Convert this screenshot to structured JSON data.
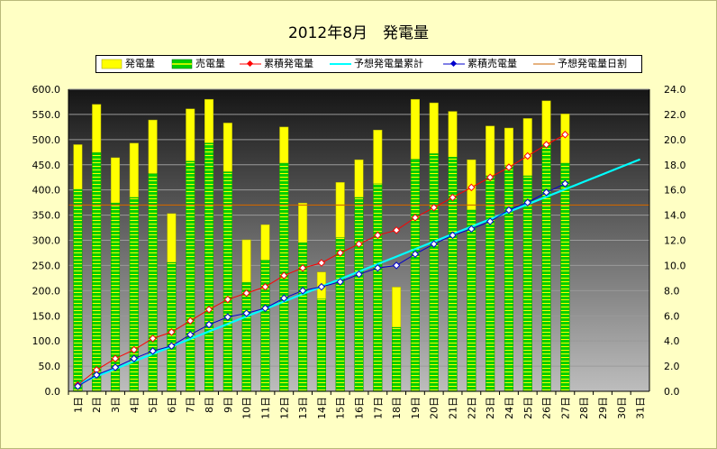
{
  "chart_data": {
    "type": "bar",
    "title": "2012年8月　発電量",
    "categories": [
      "1日",
      "2日",
      "3日",
      "4日",
      "5日",
      "6日",
      "7日",
      "8日",
      "9日",
      "10日",
      "11日",
      "12日",
      "13日",
      "14日",
      "15日",
      "16日",
      "17日",
      "18日",
      "19日",
      "20日",
      "21日",
      "22日",
      "23日",
      "24日",
      "25日",
      "26日",
      "27日",
      "28日",
      "29日",
      "30日",
      "31日"
    ],
    "ylim_left": [
      0,
      600
    ],
    "yticks_left": [
      "0.0",
      "50.0",
      "100.0",
      "150.0",
      "200.0",
      "250.0",
      "300.0",
      "350.0",
      "400.0",
      "450.0",
      "500.0",
      "550.0",
      "600.0"
    ],
    "ylim_right": [
      0,
      24
    ],
    "yticks_right": [
      "0.0",
      "2.0",
      "4.0",
      "6.0",
      "8.0",
      "10.0",
      "12.0",
      "14.0",
      "16.0",
      "18.0",
      "20.0",
      "22.0",
      "24.0"
    ],
    "grid": true,
    "legend_position": "top",
    "series": [
      {
        "name": "発電量",
        "type": "bar",
        "axis": "left",
        "color": "#ffff00",
        "values": [
          490,
          570,
          464,
          493,
          539,
          353,
          561,
          580,
          533,
          301,
          331,
          525,
          374,
          237,
          415,
          460,
          519,
          207,
          580,
          573,
          556,
          460,
          527,
          523,
          542,
          577,
          551,
          null,
          null,
          null,
          null
        ]
      },
      {
        "name": "売電量",
        "type": "bar",
        "axis": "left",
        "color": "#00d000",
        "values": [
          401,
          474,
          374,
          385,
          433,
          256,
          457,
          493,
          436,
          216,
          261,
          453,
          295,
          183,
          305,
          385,
          412,
          127,
          461,
          472,
          465,
          360,
          428,
          448,
          428,
          489,
          453,
          null,
          null,
          null,
          null
        ]
      },
      {
        "name": "累積発電量",
        "type": "line",
        "axis": "right",
        "color": "#ff0000",
        "values": [
          0.5,
          1.7,
          2.6,
          3.3,
          4.2,
          4.7,
          5.6,
          6.5,
          7.3,
          7.8,
          8.3,
          9.2,
          9.8,
          10.2,
          11.0,
          11.7,
          12.4,
          12.8,
          13.8,
          14.6,
          15.4,
          16.2,
          17.0,
          17.8,
          18.7,
          19.6,
          20.4,
          null,
          null,
          null,
          null
        ]
      },
      {
        "name": "予想発電量累計",
        "type": "line",
        "axis": "right",
        "color": "#00ffff",
        "values": [
          0.59,
          1.19,
          1.78,
          2.38,
          2.97,
          3.57,
          4.16,
          4.76,
          5.35,
          5.95,
          6.54,
          7.14,
          7.73,
          8.32,
          8.92,
          9.51,
          10.11,
          10.7,
          11.3,
          11.89,
          12.49,
          13.08,
          13.67,
          14.27,
          14.86,
          15.46,
          16.05,
          16.65,
          17.24,
          17.84,
          18.43
        ]
      },
      {
        "name": "累積売電量",
        "type": "line",
        "axis": "right",
        "color": "#0000cc",
        "values": [
          0.4,
          1.3,
          1.9,
          2.6,
          3.2,
          3.6,
          4.5,
          5.3,
          5.9,
          6.2,
          6.6,
          7.4,
          8.0,
          8.3,
          8.7,
          9.3,
          9.8,
          10.0,
          10.9,
          11.7,
          12.4,
          12.9,
          13.5,
          14.4,
          15.0,
          15.8,
          16.5,
          null,
          null,
          null,
          null
        ]
      },
      {
        "name": "予想発電量日割",
        "type": "line",
        "axis": "left",
        "color": "#cc6600",
        "values": [
          370,
          370,
          370,
          370,
          370,
          370,
          370,
          370,
          370,
          370,
          370,
          370,
          370,
          370,
          370,
          370,
          370,
          370,
          370,
          370,
          370,
          370,
          370,
          370,
          370,
          370,
          370,
          370,
          370,
          370,
          370
        ]
      }
    ]
  }
}
